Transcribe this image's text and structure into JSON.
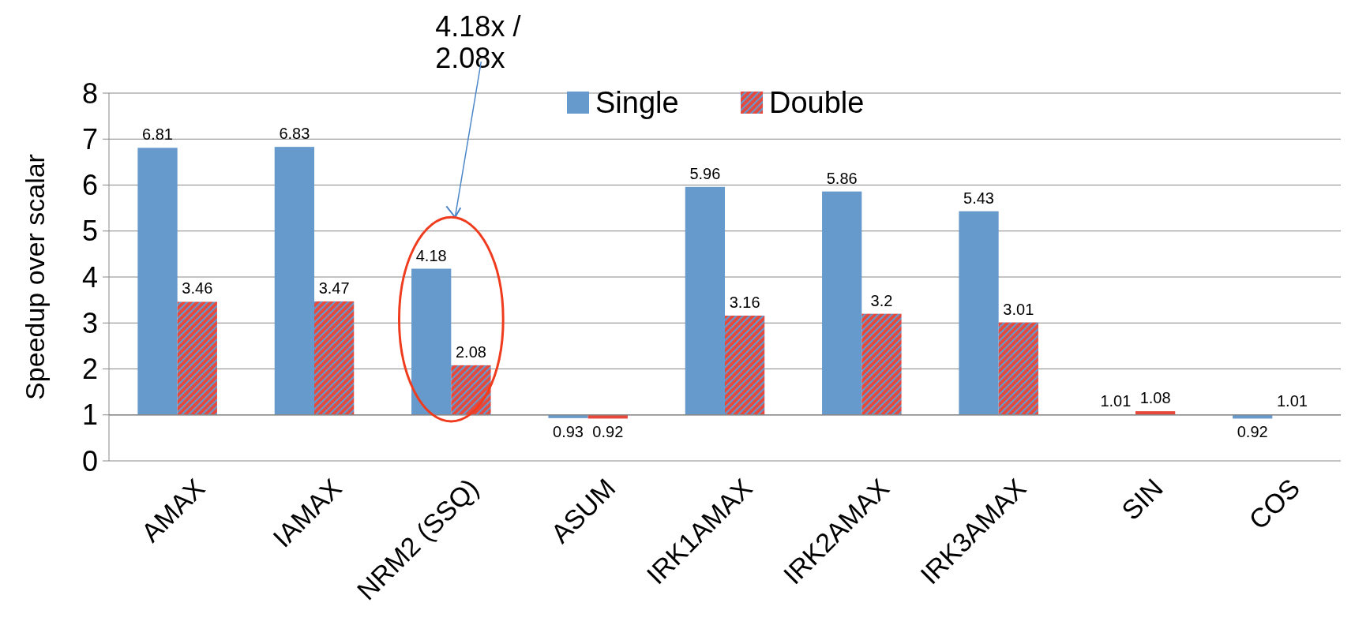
{
  "chart_data": {
    "type": "bar",
    "ylabel": "Speedup over scalar",
    "categories": [
      "AMAX",
      "IAMAX",
      "NRM2 (SSQ)",
      "ASUM",
      "IRK1AMAX",
      "IRK2AMAX",
      "IRK3AMAX",
      "SIN",
      "COS"
    ],
    "series": [
      {
        "name": "Single",
        "color": "#6699cc",
        "base": [
          1,
          1,
          1,
          1,
          1,
          1,
          1,
          1,
          1
        ],
        "values": [
          5.81,
          5.83,
          3.18,
          -0.07,
          4.96,
          4.86,
          4.43,
          0.01,
          -0.08
        ],
        "value_labels": [
          "6.81",
          "6.83",
          "4.18",
          "0.93",
          "5.96",
          "5.86",
          "5.43",
          "1.01",
          "0.92"
        ]
      },
      {
        "name": "Double",
        "color": "#e8483a",
        "base": [
          1,
          1,
          1,
          1,
          1,
          1,
          1,
          1,
          1
        ],
        "values": [
          2.46,
          2.47,
          1.08,
          -0.08,
          2.16,
          2.2,
          2.01,
          0.08,
          0.01
        ],
        "value_labels": [
          "3.46",
          "3.47",
          "2.08",
          "0.92",
          "3.16",
          "3.2",
          "3.01",
          "1.08",
          "1.01"
        ]
      }
    ],
    "ylim": [
      0,
      8
    ],
    "yticks": [
      0,
      1,
      2,
      3,
      4,
      5,
      6,
      7,
      8
    ],
    "grid": "y",
    "legend": "top",
    "ref_lines": [
      {
        "axis": "y",
        "value": 1
      }
    ],
    "annotations": [
      "4.18x / 2.08x"
    ]
  }
}
